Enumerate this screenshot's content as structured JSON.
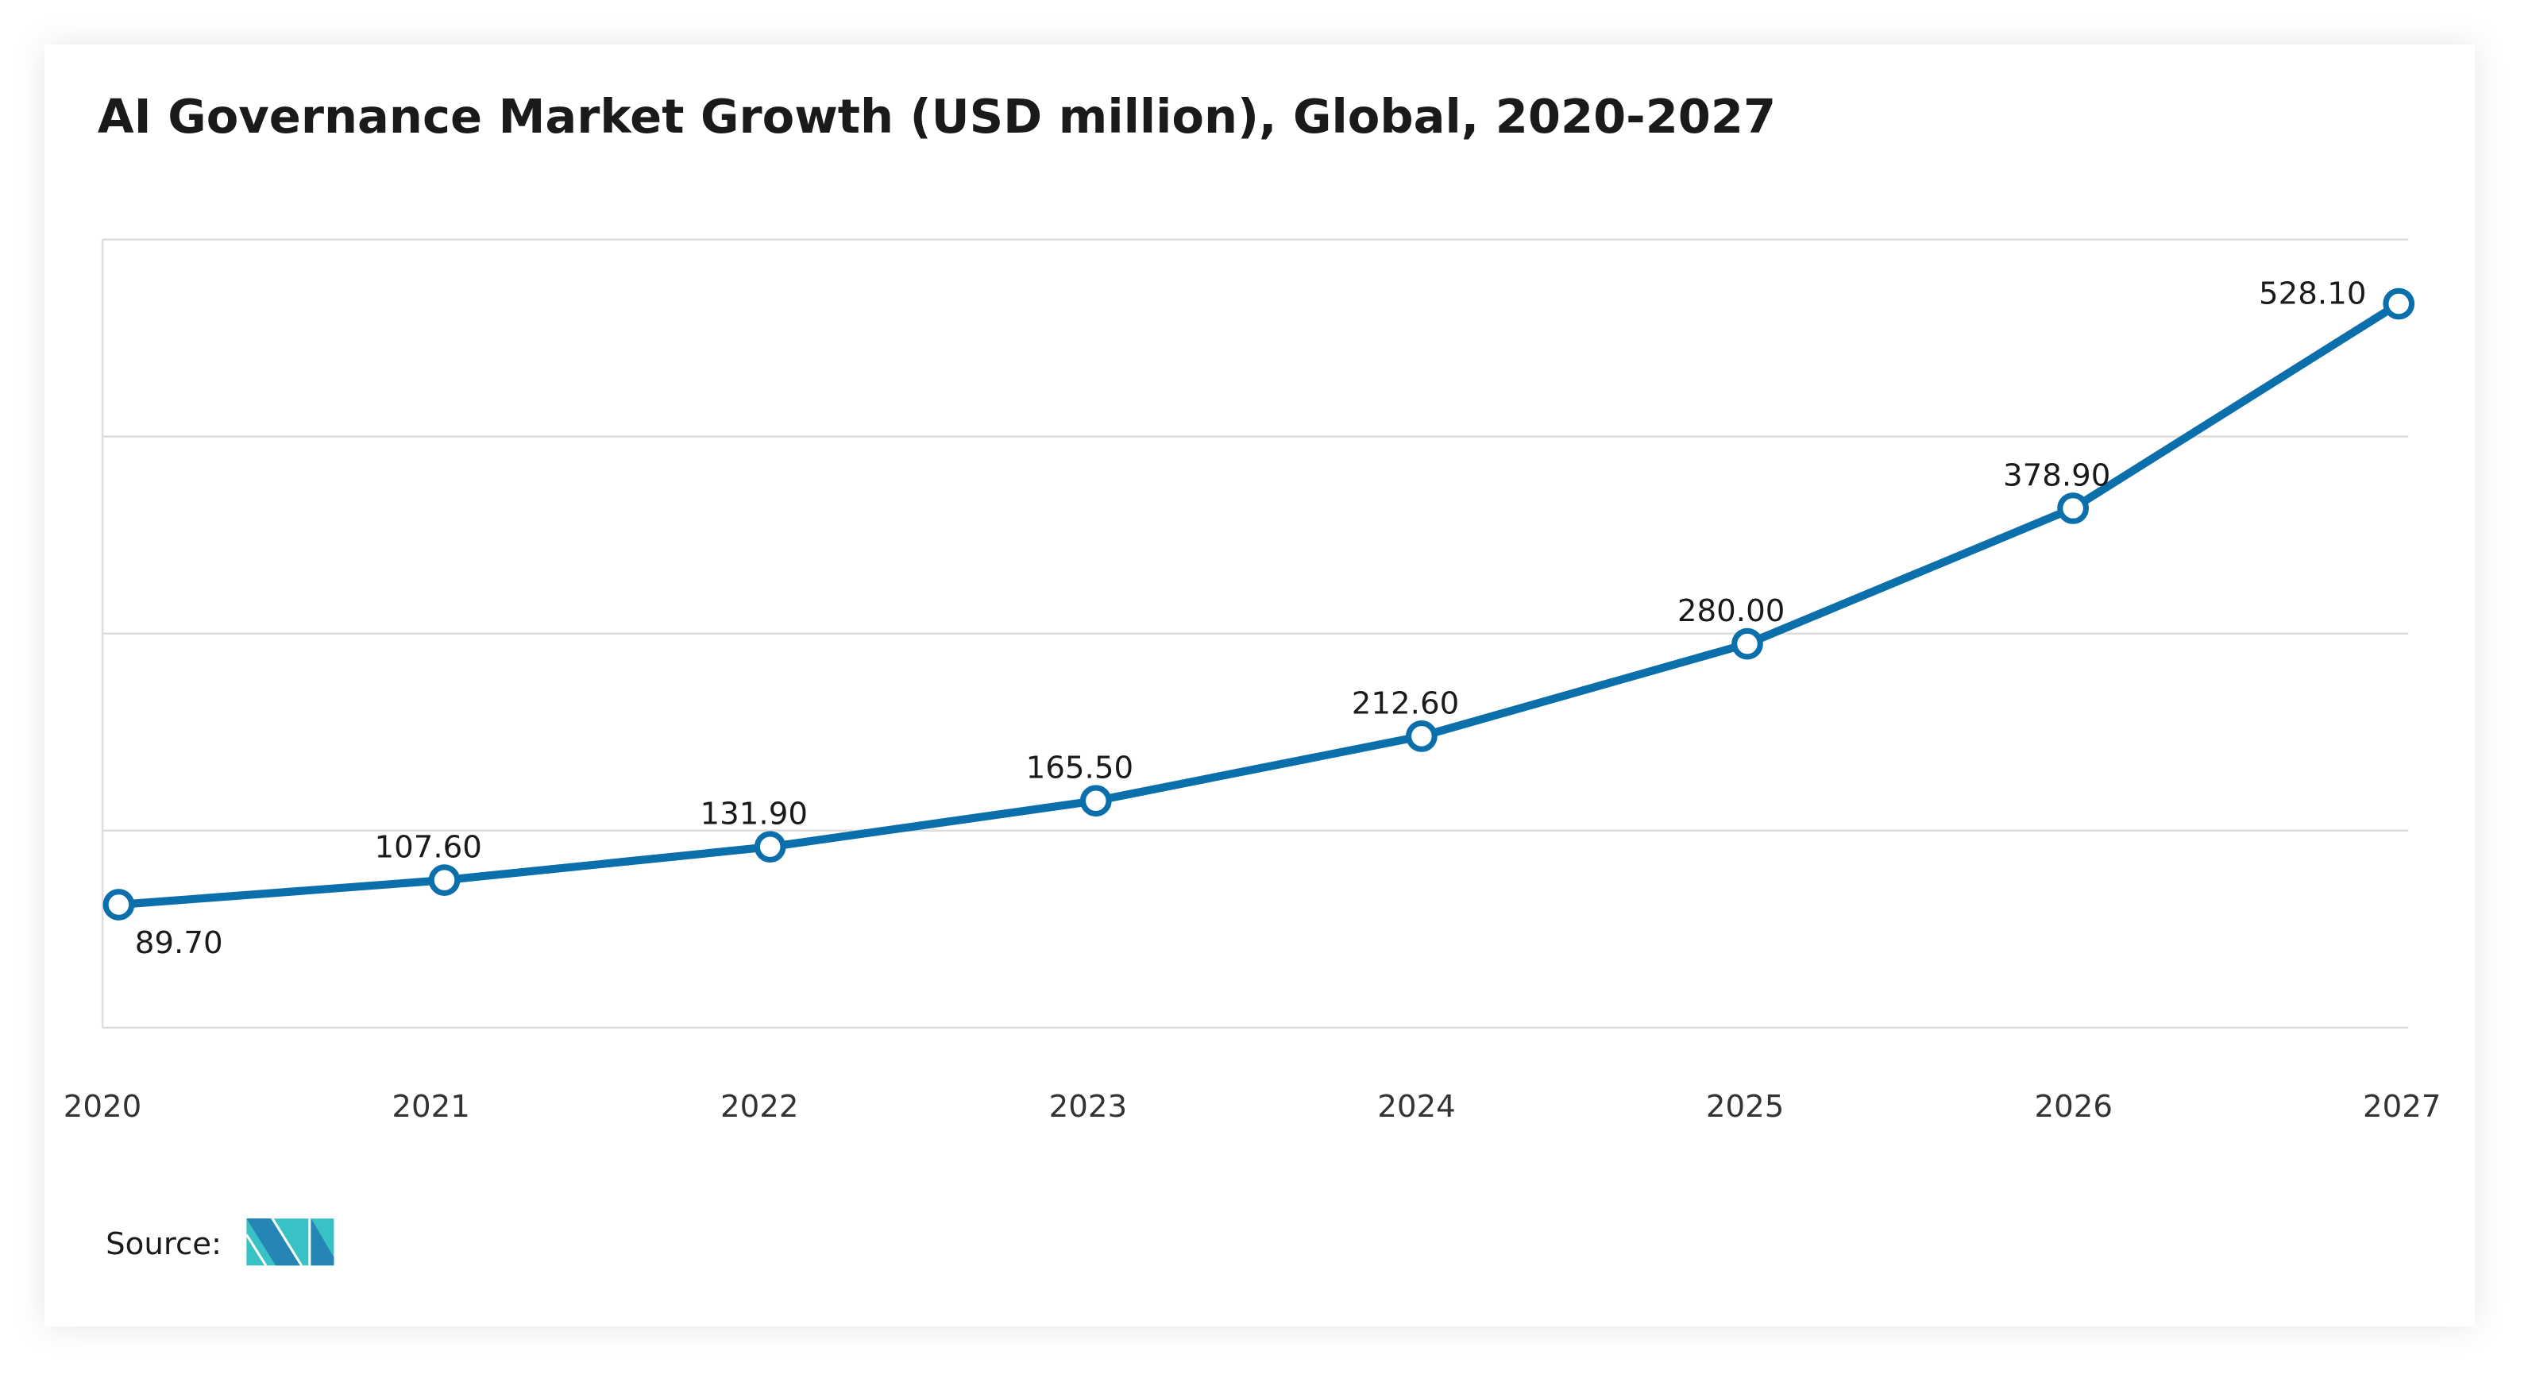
{
  "chart_data": {
    "type": "line",
    "title": "AI Governance Market Growth (USD million), Global, 2020-2027",
    "xlabel": "",
    "ylabel": "",
    "categories": [
      "2020",
      "2021",
      "2022",
      "2023",
      "2024",
      "2025",
      "2026",
      "2027"
    ],
    "series": [
      {
        "values": [
          89.7,
          107.6,
          131.9,
          165.5,
          212.6,
          280.0,
          378.9,
          528.1
        ]
      }
    ],
    "data_labels": [
      "89.70",
      "107.60",
      "131.90",
      "165.50",
      "212.60",
      "280.00",
      "378.90",
      "528.10"
    ],
    "ylim": [
      0,
      575
    ],
    "grid": true,
    "y_tick_labels_shown": false,
    "line_color": "#0a6faa",
    "source_label": "Source:",
    "logo_colors": [
      "#2585b5",
      "#39c2c6"
    ]
  }
}
